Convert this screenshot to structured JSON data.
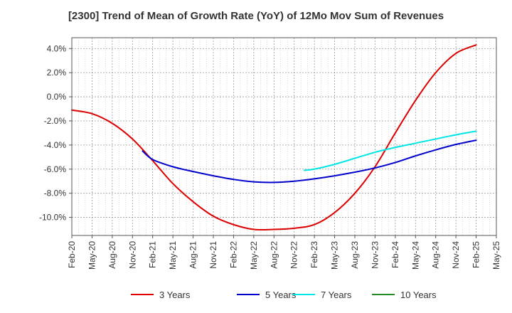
{
  "chart_data": {
    "type": "line",
    "title": "[2300]  Trend of Mean of Growth Rate (YoY) of 12Mo Mov Sum of Revenues",
    "xlabel": "",
    "ylabel": "",
    "x_ticks": [
      "Feb-20",
      "May-20",
      "Aug-20",
      "Nov-20",
      "Feb-21",
      "May-21",
      "Aug-21",
      "Nov-21",
      "Feb-22",
      "May-22",
      "Aug-22",
      "Nov-22",
      "Feb-23",
      "May-23",
      "Aug-23",
      "Nov-23",
      "Feb-24",
      "May-24",
      "Aug-24",
      "Nov-24",
      "Feb-25",
      "May-25"
    ],
    "ylim": [
      -11.5,
      4.9
    ],
    "y_ticks": [
      4.0,
      2.0,
      0.0,
      -2.0,
      -4.0,
      -6.0,
      -8.0,
      -10.0
    ],
    "y_tick_labels": [
      "4.0%",
      "2.0%",
      "0.0%",
      "-2.0%",
      "-4.0%",
      "-6.0%",
      "-8.0%",
      "-10.0%"
    ],
    "grid": true,
    "legend_position": "bottom",
    "series": [
      {
        "name": "3 Years",
        "color": "#dd0000",
        "points": [
          [
            0,
            -1.1
          ],
          [
            1,
            -1.4
          ],
          [
            2,
            -2.2
          ],
          [
            3,
            -3.5
          ],
          [
            4,
            -5.3
          ],
          [
            5,
            -7.2
          ],
          [
            6,
            -8.7
          ],
          [
            7,
            -9.9
          ],
          [
            8,
            -10.6
          ],
          [
            9,
            -11.0
          ],
          [
            10,
            -11.0
          ],
          [
            11,
            -10.9
          ],
          [
            12,
            -10.6
          ],
          [
            13,
            -9.6
          ],
          [
            14,
            -8.0
          ],
          [
            15,
            -5.8
          ],
          [
            16,
            -3.0
          ],
          [
            17,
            -0.3
          ],
          [
            18,
            2.0
          ],
          [
            19,
            3.6
          ],
          [
            20,
            4.3
          ]
        ]
      },
      {
        "name": "5 Years",
        "color": "#0000cc",
        "points": [
          [
            3.5,
            -4.5
          ],
          [
            4,
            -5.2
          ],
          [
            5,
            -5.8
          ],
          [
            6,
            -6.2
          ],
          [
            7,
            -6.55
          ],
          [
            8,
            -6.85
          ],
          [
            9,
            -7.05
          ],
          [
            10,
            -7.1
          ],
          [
            11,
            -7.0
          ],
          [
            12,
            -6.8
          ],
          [
            13,
            -6.55
          ],
          [
            14,
            -6.25
          ],
          [
            15,
            -5.9
          ],
          [
            16,
            -5.45
          ],
          [
            17,
            -4.9
          ],
          [
            18,
            -4.4
          ],
          [
            19,
            -3.95
          ],
          [
            20,
            -3.6
          ]
        ]
      },
      {
        "name": "7 Years",
        "color": "#00e5e5",
        "points": [
          [
            11.5,
            -6.1
          ],
          [
            12,
            -6.0
          ],
          [
            13,
            -5.6
          ],
          [
            14,
            -5.1
          ],
          [
            15,
            -4.6
          ],
          [
            16,
            -4.2
          ],
          [
            17,
            -3.85
          ],
          [
            18,
            -3.5
          ],
          [
            19,
            -3.15
          ],
          [
            20,
            -2.85
          ]
        ]
      },
      {
        "name": "10 Years",
        "color": "#228b22",
        "points": []
      }
    ]
  }
}
